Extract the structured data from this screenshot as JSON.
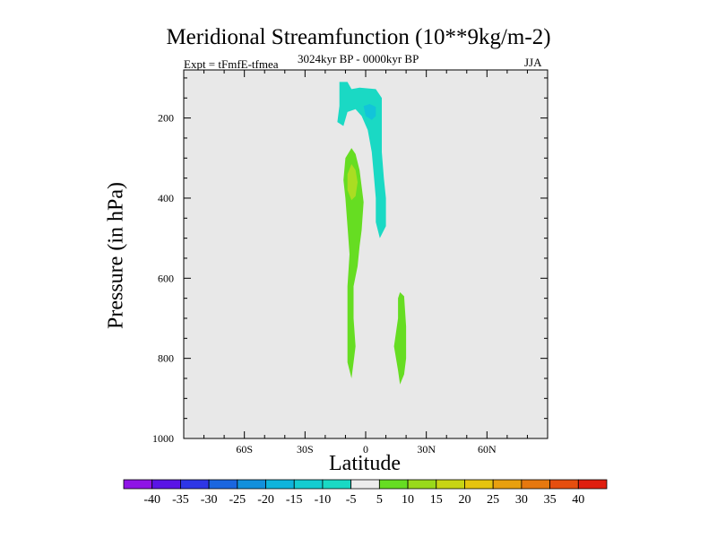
{
  "chart_data": {
    "type": "contour",
    "title": "Meridional Streamfunction (10**9kg/m-2)",
    "subtitle_left": "Expt = tFmfE-tfmea",
    "subtitle_center": "3024kyr BP - 0000kyr BP",
    "subtitle_right": "JJA",
    "xlabel": "Latitude",
    "ylabel": "Pressure (in hPa)",
    "xlim": [
      -90,
      90
    ],
    "ylim": [
      1000,
      80
    ],
    "x_ticks": [
      {
        "value": -60,
        "label": "60S"
      },
      {
        "value": -30,
        "label": "30S"
      },
      {
        "value": 0,
        "label": "0"
      },
      {
        "value": 30,
        "label": "30N"
      },
      {
        "value": 60,
        "label": "60N"
      }
    ],
    "y_ticks": [
      {
        "value": 200,
        "label": "200"
      },
      {
        "value": 400,
        "label": "400"
      },
      {
        "value": 600,
        "label": "600"
      },
      {
        "value": 800,
        "label": "800"
      },
      {
        "value": 1000,
        "label": "1000"
      }
    ],
    "background_color": "#e8e8e8",
    "regions": [
      {
        "name": "negative-upper-cell",
        "range": "-10 to -5",
        "color": "#1ad9c4",
        "points": [
          [
            -13,
            110
          ],
          [
            -9,
            110
          ],
          [
            -7,
            128
          ],
          [
            -3,
            124
          ],
          [
            5,
            128
          ],
          [
            8,
            150
          ],
          [
            8,
            230
          ],
          [
            8,
            285
          ],
          [
            9,
            350
          ],
          [
            10,
            400
          ],
          [
            10,
            470
          ],
          [
            7,
            500
          ],
          [
            5,
            460
          ],
          [
            5,
            400
          ],
          [
            4,
            340
          ],
          [
            3,
            285
          ],
          [
            1,
            230
          ],
          [
            -2,
            195
          ],
          [
            -5,
            178
          ],
          [
            -9,
            185
          ],
          [
            -11,
            220
          ],
          [
            -14,
            210
          ],
          [
            -13,
            170
          ],
          [
            -13,
            135
          ]
        ]
      },
      {
        "name": "negative-inner-cell",
        "range": "-15 to -10",
        "color": "#12c4d9",
        "points": [
          [
            -1,
            170
          ],
          [
            2,
            165
          ],
          [
            5,
            172
          ],
          [
            5,
            195
          ],
          [
            3,
            205
          ],
          [
            0,
            195
          ]
        ]
      },
      {
        "name": "positive-lower-cell-equator",
        "range": "5 to 10",
        "color": "#66dd22",
        "points": [
          [
            -7,
            275
          ],
          [
            -5,
            290
          ],
          [
            -3,
            330
          ],
          [
            -1,
            410
          ],
          [
            -2,
            480
          ],
          [
            -3,
            520
          ],
          [
            -4,
            570
          ],
          [
            -6,
            620
          ],
          [
            -6,
            700
          ],
          [
            -5,
            770
          ],
          [
            -6,
            810
          ],
          [
            -7,
            850
          ],
          [
            -9,
            810
          ],
          [
            -9,
            720
          ],
          [
            -9,
            620
          ],
          [
            -8,
            540
          ],
          [
            -9,
            470
          ],
          [
            -10,
            400
          ],
          [
            -11,
            355
          ],
          [
            -10,
            300
          ]
        ]
      },
      {
        "name": "positive-inner-cell",
        "range": "10 to 15",
        "color": "#aadd22",
        "points": [
          [
            -7,
            315
          ],
          [
            -5,
            330
          ],
          [
            -4,
            360
          ],
          [
            -5,
            395
          ],
          [
            -7,
            405
          ],
          [
            -9,
            380
          ],
          [
            -9,
            340
          ]
        ]
      },
      {
        "name": "positive-lower-cell-north",
        "range": "5 to 10",
        "color": "#66dd22",
        "points": [
          [
            17,
            635
          ],
          [
            19,
            645
          ],
          [
            20,
            720
          ],
          [
            20,
            800
          ],
          [
            19,
            840
          ],
          [
            17,
            865
          ],
          [
            16,
            830
          ],
          [
            14,
            770
          ],
          [
            16,
            700
          ],
          [
            16,
            650
          ]
        ]
      }
    ],
    "colorbar": {
      "labels": [
        "-40",
        "-35",
        "-30",
        "-25",
        "-20",
        "-15",
        "-10",
        "-5",
        "5",
        "10",
        "15",
        "20",
        "25",
        "30",
        "35",
        "40"
      ],
      "colors": [
        "#8f14e6",
        "#5a14e6",
        "#2e36e6",
        "#1a66e0",
        "#1290dc",
        "#0fb4dc",
        "#14ccd0",
        "#1ad9c4",
        "#ececec",
        "#66dd22",
        "#99d91a",
        "#c8d414",
        "#e6c40f",
        "#e8a00f",
        "#e6780f",
        "#e64e0f",
        "#e01e0f"
      ]
    }
  }
}
